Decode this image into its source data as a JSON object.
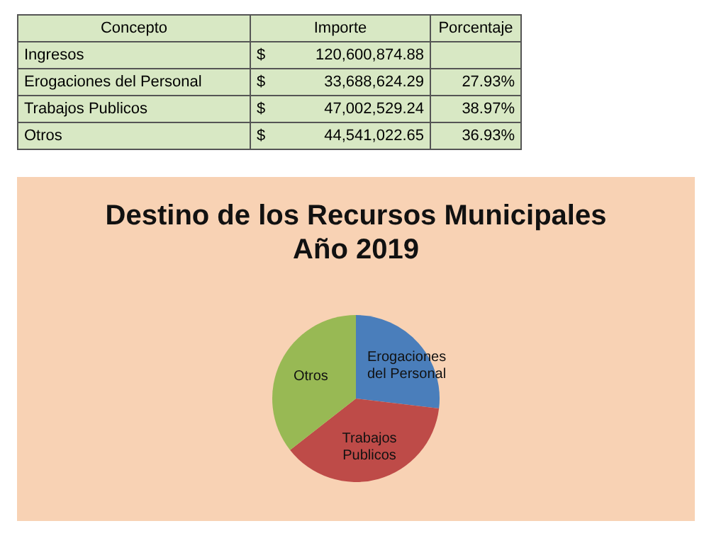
{
  "chart_data": [
    {
      "type": "other",
      "annotations": [
        "Concepto"
      ],
      "categories": [
        "Ingresos",
        "Erogaciones del Personal",
        "Trabajos Publicos",
        "Otros"
      ],
      "series": [
        {
          "name": "Importe",
          "values": [
            120600874.88,
            33688624.29,
            47002529.24,
            44541022.65
          ],
          "value_labels": [
            "$ 120,600,874.88",
            "$ 33,688,624.29",
            "$ 47,002,529.24",
            "$ 44,541,022.65"
          ]
        },
        {
          "name": "Porcentaje",
          "values": [
            null,
            27.93,
            38.97,
            36.93
          ],
          "value_labels": [
            null,
            "27.93%",
            "38.97%",
            "36.93%"
          ]
        }
      ]
    },
    {
      "type": "pie",
      "title": "Destino de los Recursos Municipales\nAño 2019",
      "categories": [
        "Erogaciones del Personal",
        "Trabajos Publicos",
        "Otros"
      ],
      "values": [
        26.9,
        37.53,
        35.57
      ],
      "colors": [
        "#4a7ebb",
        "#be4b48",
        "#98b954"
      ],
      "legend": false
    }
  ]
}
